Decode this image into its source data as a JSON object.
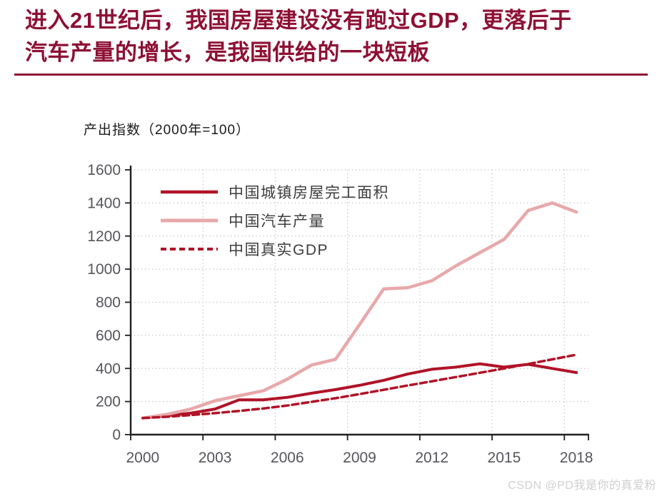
{
  "header": {
    "title_line1": "进入21世纪后，我国房屋建设没有跑过GDP，更落后于",
    "title_line2": "汽车产量的增长，是我国供给的一块短板"
  },
  "watermark": "CSDN @PD我是你的真爱粉",
  "colors": {
    "maroon": "#8e1034",
    "dark_red": "#b01327",
    "pink": "#e8a8aa",
    "grid": "#c7c7c7",
    "axis": "#1f1f1f",
    "tick_label": "#55555c",
    "legend_text": "#3d3d3d",
    "watermark": "#cfcfcf"
  },
  "chart_data": {
    "type": "line",
    "title": "产出指数（2000年=100）",
    "x": [
      2000,
      2001,
      2002,
      2003,
      2004,
      2005,
      2006,
      2007,
      2008,
      2009,
      2010,
      2011,
      2012,
      2013,
      2014,
      2015,
      2016,
      2017,
      2018
    ],
    "series": [
      {
        "name": "中国城镇房屋完工面积",
        "style": "solid",
        "color_key": "dark_red",
        "width": 4,
        "values": [
          100,
          115,
          130,
          155,
          210,
          210,
          225,
          250,
          272,
          298,
          328,
          366,
          395,
          408,
          428,
          408,
          425,
          400,
          375
        ]
      },
      {
        "name": "中国汽车产量",
        "style": "solid",
        "color_key": "pink",
        "width": 4.5,
        "values": [
          100,
          122,
          155,
          205,
          235,
          265,
          335,
          420,
          455,
          665,
          880,
          888,
          930,
          1020,
          1100,
          1180,
          1355,
          1400,
          1345
        ]
      },
      {
        "name": "中国真实GDP",
        "style": "dashed",
        "color_key": "dark_red",
        "width": 3.5,
        "values": [
          100,
          108,
          118,
          130,
          143,
          158,
          176,
          198,
          220,
          245,
          271,
          297,
          322,
          348,
          374,
          400,
          427,
          455,
          483
        ]
      }
    ],
    "ylim": [
      0,
      1600
    ],
    "ytick_step": 200,
    "xticks_labeled": [
      2000,
      2003,
      2006,
      2009,
      2012,
      2015,
      2018
    ],
    "grid": "dotted",
    "legend_position": "upper-left-inside"
  }
}
